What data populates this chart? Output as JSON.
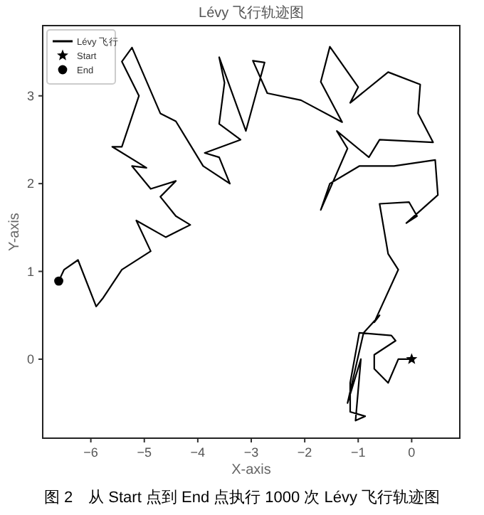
{
  "chart_data": {
    "type": "line",
    "title": "Lévy 飞行轨迹图",
    "xlabel": "X-axis",
    "ylabel": "Y-axis",
    "annotations": [
      "图 2　从 Start 点到 End 点执行 1000 次 Lévy 飞行轨迹图"
    ],
    "xlim": [
      -6.9,
      0.9
    ],
    "ylim": [
      -0.9,
      3.8
    ],
    "xticks": [
      -6,
      -5,
      -4,
      -3,
      -2,
      -1,
      0
    ],
    "yticks": [
      0,
      1,
      2,
      3
    ],
    "legend": "top left",
    "series": [
      {
        "name": "Lévy 飞行",
        "color": "#000000",
        "marker": "none",
        "x": [
          0,
          -0.25,
          -0.44,
          -0.7,
          -0.7,
          -0.3,
          -0.38,
          -0.98,
          -1.15,
          -1.15,
          -0.87,
          -1.05,
          -0.95,
          -1.2,
          -0.9,
          -0.6,
          -0.7,
          -0.25,
          -0.44,
          -0.6,
          -0.05,
          0.1,
          -0.1,
          0.49,
          0.44,
          -0.33,
          -0.98,
          -1.53,
          -1.7,
          -1.2,
          -1.4,
          -0.8,
          -0.6,
          0.4,
          0.12,
          0.16,
          -0.44,
          -1.15,
          -1.0,
          -1.53,
          -1.7,
          -1.3,
          -2.07,
          -2.7,
          -2.97,
          -2.75,
          -3.1,
          -3.6,
          -3.5,
          -3.6,
          -3.2,
          -3.87,
          -3.6,
          -3.4,
          -3.9,
          -4.41,
          -4.7,
          -5.23,
          -5.42,
          -5.1,
          -5.42,
          -5.6,
          -4.96,
          -5.23,
          -4.88,
          -4.41,
          -4.7,
          -4.41,
          -4.14,
          -4.6,
          -5.15,
          -4.88,
          -5.42,
          -5.78,
          -5.9,
          -6.24,
          -6.5,
          -6.6
        ],
        "values": [
          0,
          0,
          -0.27,
          -0.11,
          0.05,
          0.21,
          0.27,
          0.3,
          -0.27,
          -0.6,
          -0.65,
          -0.7,
          0.0,
          -0.5,
          0.3,
          0.5,
          0.42,
          1.02,
          1.2,
          1.77,
          1.79,
          1.63,
          1.55,
          1.87,
          2.27,
          2.2,
          2.2,
          2.0,
          1.7,
          2.4,
          2.6,
          2.3,
          2.5,
          2.47,
          2.8,
          3.13,
          3.27,
          2.92,
          3.1,
          3.56,
          3.16,
          2.7,
          2.95,
          3.03,
          3.4,
          3.38,
          2.6,
          3.44,
          3.15,
          2.68,
          2.5,
          2.35,
          2.3,
          2.0,
          2.2,
          2.71,
          2.8,
          3.55,
          3.39,
          3.0,
          2.42,
          2.42,
          2.18,
          2.2,
          1.94,
          2.03,
          1.85,
          1.63,
          1.53,
          1.39,
          1.58,
          1.23,
          1.02,
          0.69,
          0.6,
          1.13,
          1.02,
          0.89
        ]
      },
      {
        "name": "Start",
        "type": "scatter",
        "color": "#000000",
        "marker": "star",
        "x": [
          0
        ],
        "values": [
          0
        ]
      },
      {
        "name": "End",
        "type": "scatter",
        "color": "#000000",
        "marker": "circle",
        "x": [
          -6.6
        ],
        "values": [
          0.89
        ]
      }
    ]
  }
}
